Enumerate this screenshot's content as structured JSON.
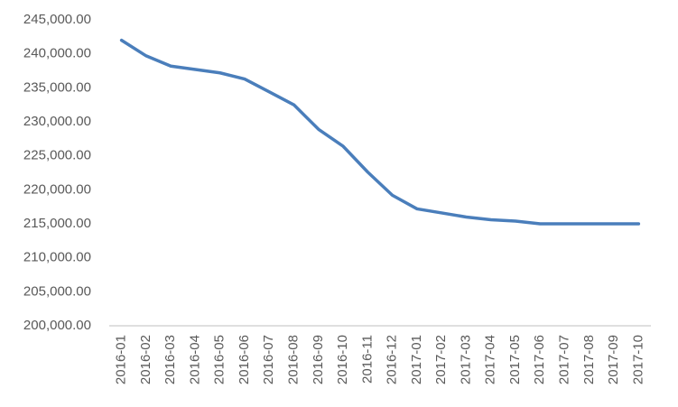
{
  "chart_data": {
    "type": "line",
    "categories": [
      "2016-01",
      "2016-02",
      "2016-03",
      "2016-04",
      "2016-05",
      "2016-06",
      "2016-07",
      "2016-08",
      "2016-09",
      "2016-10",
      "2016-11",
      "2016-12",
      "2017-01",
      "2017-02",
      "2017-03",
      "2017-04",
      "2017-05",
      "2017-06",
      "2017-07",
      "2017-08",
      "2017-09",
      "2017-10"
    ],
    "values": [
      242000,
      239700,
      238200,
      237700,
      237200,
      236300,
      234400,
      232500,
      228900,
      226400,
      222600,
      219200,
      217200,
      216600,
      216000,
      215600,
      215400,
      215000,
      215000,
      215000,
      215000,
      215000
    ],
    "color": "#4a7ebb",
    "ylim": [
      200000,
      245000
    ],
    "yticks": [
      {
        "value": 200000,
        "label": "200,000.00"
      },
      {
        "value": 205000,
        "label": "205,000.00"
      },
      {
        "value": 210000,
        "label": "210,000.00"
      },
      {
        "value": 215000,
        "label": "215,000.00"
      },
      {
        "value": 220000,
        "label": "220,000.00"
      },
      {
        "value": 225000,
        "label": "225,000.00"
      },
      {
        "value": 230000,
        "label": "230,000.00"
      },
      {
        "value": 235000,
        "label": "235,000.00"
      },
      {
        "value": 240000,
        "label": "240,000.00"
      },
      {
        "value": 245000,
        "label": "245,000.00"
      }
    ],
    "grid": false
  }
}
